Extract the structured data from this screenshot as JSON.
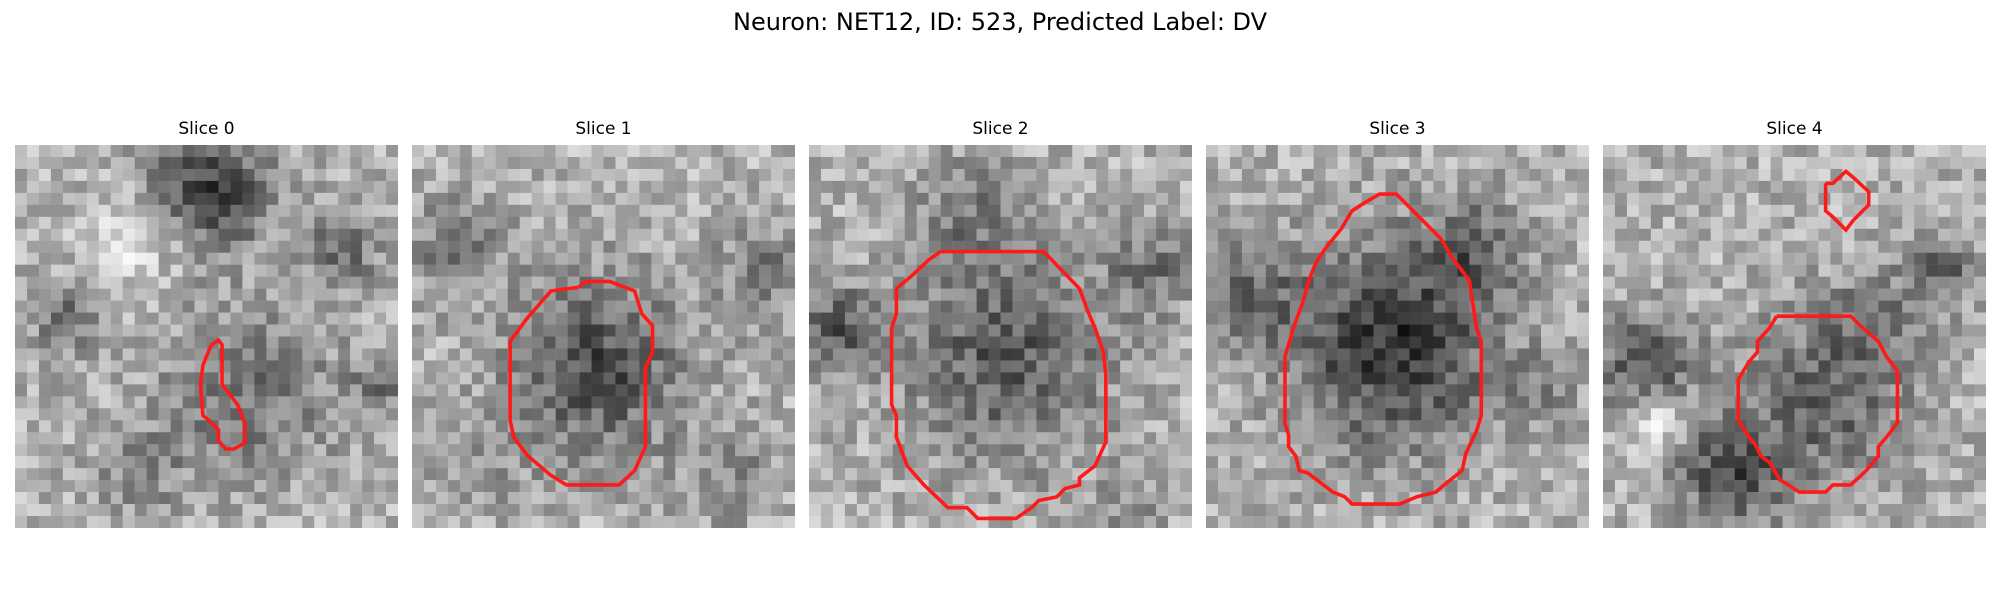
{
  "figure": {
    "title": "Neuron: NET12, ID: 523, Predicted Label: DV"
  },
  "panels": [
    {
      "title": "Slice 0"
    },
    {
      "title": "Slice 1"
    },
    {
      "title": "Slice 2"
    },
    {
      "title": "Slice 3"
    },
    {
      "title": "Slice 4"
    }
  ],
  "colors": {
    "contour": "#ff1a1a",
    "background": "#ffffff"
  }
}
